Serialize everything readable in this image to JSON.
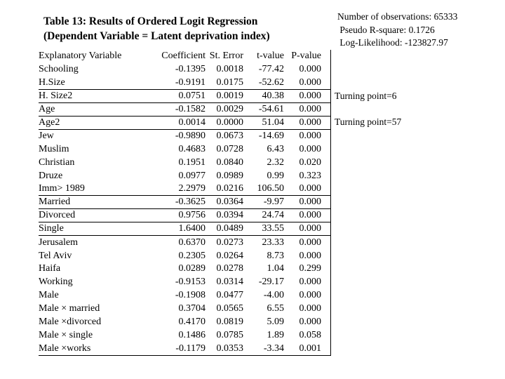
{
  "slide": {
    "title_line1": "Table 13: Results of Ordered Logit Regression",
    "title_line2": "(Dependent Variable = Latent deprivation index)",
    "stats": [
      "Number of observations: 65333",
      " Pseudo R-square: 0.1726",
      " Log-Likelihood: -123827.97"
    ],
    "annotations": [
      {
        "text": "Turning point=6",
        "aligned_row": "H. Size2"
      },
      {
        "text": "Turning point=57",
        "aligned_row": "Age2"
      }
    ]
  },
  "table": {
    "columns": [
      "Explanatory Variable",
      "Coefficient",
      "St. Error",
      "t-value",
      "P-value"
    ],
    "rows": [
      {
        "var": "Schooling",
        "coef": "-0.1395",
        "se": "0.0018",
        "t": "-77.42",
        "p": "0.000",
        "line_below": false
      },
      {
        "var": "H.Size",
        "coef": "-0.9191",
        "se": "0.0175",
        "t": "-52.62",
        "p": "0.000",
        "line_below": true
      },
      {
        "var": "H. Size2",
        "coef": "0.0751",
        "se": "0.0019",
        "t": "40.38",
        "p": "0.000",
        "line_below": true
      },
      {
        "var": "Age",
        "coef": "-0.1582",
        "se": "0.0029",
        "t": "-54.61",
        "p": "0.000",
        "line_below": true
      },
      {
        "var": "Age2",
        "coef": "0.0014",
        "se": "0.0000",
        "t": "51.04",
        "p": "0.000",
        "line_below": true
      },
      {
        "var": "Jew",
        "coef": "-0.9890",
        "se": "0.0673",
        "t": "-14.69",
        "p": "0.000",
        "line_below": false
      },
      {
        "var": "Muslim",
        "coef": "0.4683",
        "se": "0.0728",
        "t": "6.43",
        "p": "0.000",
        "line_below": false
      },
      {
        "var": "Christian",
        "coef": "0.1951",
        "se": "0.0840",
        "t": "2.32",
        "p": "0.020",
        "line_below": false
      },
      {
        "var": "Druze",
        "coef": "0.0977",
        "se": "0.0989",
        "t": "0.99",
        "p": "0.323",
        "line_below": false
      },
      {
        "var": "Imm> 1989",
        "coef": "2.2979",
        "se": "0.0216",
        "t": "106.50",
        "p": "0.000",
        "line_below": true
      },
      {
        "var": "Married",
        "coef": "-0.3625",
        "se": "0.0364",
        "t": "-9.97",
        "p": "0.000",
        "line_below": true
      },
      {
        "var": "Divorced",
        "coef": "0.9756",
        "se": "0.0394",
        "t": "24.74",
        "p": "0.000",
        "line_below": true
      },
      {
        "var": "Single",
        "coef": "1.6400",
        "se": "0.0489",
        "t": "33.55",
        "p": "0.000",
        "line_below": true
      },
      {
        "var": "Jerusalem",
        "coef": "0.6370",
        "se": "0.0273",
        "t": "23.33",
        "p": "0.000",
        "line_below": false
      },
      {
        "var": "Tel Aviv",
        "coef": "0.2305",
        "se": "0.0264",
        "t": "8.73",
        "p": "0.000",
        "line_below": false
      },
      {
        "var": "Haifa",
        "coef": "0.0289",
        "se": "0.0278",
        "t": "1.04",
        "p": "0.299",
        "line_below": false
      },
      {
        "var": "Working",
        "coef": "-0.9153",
        "se": "0.0314",
        "t": "-29.17",
        "p": "0.000",
        "line_below": false
      },
      {
        "var": "Male",
        "coef": "-0.1908",
        "se": "0.0477",
        "t": "-4.00",
        "p": "0.000",
        "line_below": false
      },
      {
        "var": "Male × married",
        "coef": "0.3704",
        "se": "0.0565",
        "t": "6.55",
        "p": "0.000",
        "line_below": false
      },
      {
        "var": "Male ×divorced",
        "coef": "0.4170",
        "se": "0.0819",
        "t": "5.09",
        "p": "0.000",
        "line_below": false
      },
      {
        "var": "Male × single",
        "coef": "0.1486",
        "se": "0.0785",
        "t": "1.89",
        "p": "0.058",
        "line_below": false
      },
      {
        "var": "Male ×works",
        "coef": "-0.1179",
        "se": "0.0353",
        "t": "-3.34",
        "p": "0.001",
        "line_below": true
      }
    ]
  }
}
